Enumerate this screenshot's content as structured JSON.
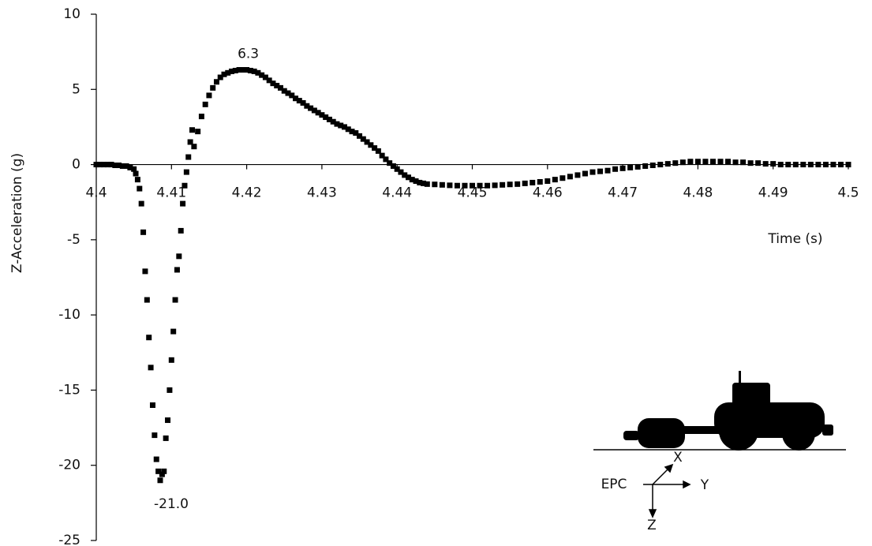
{
  "chart_data": {
    "type": "scatter",
    "marker": "square",
    "color": "#000000",
    "y_label": "Z-Acceleration (g)",
    "x_label": "Time (s)",
    "xlim": [
      4.4,
      4.5
    ],
    "xticks": [
      4.4,
      4.41,
      4.42,
      4.43,
      4.44,
      4.45,
      4.46,
      4.47,
      4.48,
      4.49,
      4.5
    ],
    "ylim": [
      -25,
      10
    ],
    "yticks": [
      10,
      5,
      0,
      -5,
      -10,
      -15,
      -20,
      -25
    ],
    "x": [
      4.4,
      4.4005,
      4.401,
      4.4015,
      4.402,
      4.4025,
      4.403,
      4.4035,
      4.404,
      4.4045,
      4.405,
      4.40525,
      4.4055,
      4.40575,
      4.406,
      4.40625,
      4.4065,
      4.40675,
      4.407,
      4.40725,
      4.4075,
      4.40775,
      4.408,
      4.40825,
      4.4085,
      4.40875,
      4.409,
      4.40925,
      4.4095,
      4.40975,
      4.41,
      4.41025,
      4.4105,
      4.41075,
      4.411,
      4.41125,
      4.4115,
      4.41175,
      4.412,
      4.41225,
      4.4125,
      4.41275,
      4.413,
      4.4135,
      4.414,
      4.4145,
      4.415,
      4.4155,
      4.416,
      4.4165,
      4.417,
      4.4175,
      4.418,
      4.4185,
      4.419,
      4.4195,
      4.42,
      4.4205,
      4.421,
      4.4215,
      4.422,
      4.4225,
      4.423,
      4.4235,
      4.424,
      4.4245,
      4.425,
      4.4255,
      4.426,
      4.4265,
      4.427,
      4.4275,
      4.428,
      4.4285,
      4.429,
      4.4295,
      4.43,
      4.4305,
      4.431,
      4.4315,
      4.432,
      4.4325,
      4.433,
      4.4335,
      4.434,
      4.4345,
      4.435,
      4.4355,
      4.436,
      4.4365,
      4.437,
      4.4375,
      4.438,
      4.4385,
      4.439,
      4.4395,
      4.44,
      4.4405,
      4.441,
      4.4415,
      4.442,
      4.4425,
      4.443,
      4.4435,
      4.444,
      4.445,
      4.446,
      4.447,
      4.448,
      4.449,
      4.45,
      4.451,
      4.452,
      4.453,
      4.454,
      4.455,
      4.456,
      4.457,
      4.458,
      4.459,
      4.46,
      4.461,
      4.462,
      4.463,
      4.464,
      4.465,
      4.466,
      4.467,
      4.468,
      4.469,
      4.47,
      4.471,
      4.472,
      4.473,
      4.474,
      4.475,
      4.476,
      4.477,
      4.478,
      4.479,
      4.48,
      4.481,
      4.482,
      4.483,
      4.484,
      4.485,
      4.486,
      4.487,
      4.488,
      4.489,
      4.49,
      4.491,
      4.492,
      4.493,
      4.494,
      4.495,
      4.496,
      4.497,
      4.498,
      4.499,
      4.5
    ],
    "values": [
      0,
      0,
      0,
      0,
      0,
      -0.05,
      -0.05,
      -0.1,
      -0.1,
      -0.2,
      -0.3,
      -0.6,
      -1.0,
      -1.6,
      -2.6,
      -4.5,
      -7.1,
      -9.0,
      -11.5,
      -13.5,
      -16.0,
      -18.0,
      -19.6,
      -20.4,
      -21.0,
      -20.6,
      -20.4,
      -18.2,
      -17.0,
      -15.0,
      -13.0,
      -11.1,
      -9.0,
      -7.0,
      -6.1,
      -4.4,
      -2.6,
      -1.4,
      -0.5,
      0.5,
      1.5,
      2.3,
      1.2,
      2.2,
      3.2,
      4.0,
      4.6,
      5.1,
      5.5,
      5.8,
      6.0,
      6.1,
      6.2,
      6.25,
      6.3,
      6.3,
      6.3,
      6.25,
      6.2,
      6.1,
      5.95,
      5.8,
      5.6,
      5.4,
      5.25,
      5.1,
      4.9,
      4.75,
      4.6,
      4.4,
      4.25,
      4.1,
      3.9,
      3.75,
      3.6,
      3.45,
      3.3,
      3.15,
      3.0,
      2.85,
      2.7,
      2.6,
      2.5,
      2.35,
      2.2,
      2.1,
      1.9,
      1.7,
      1.5,
      1.3,
      1.1,
      0.9,
      0.6,
      0.35,
      0.1,
      -0.1,
      -0.3,
      -0.5,
      -0.7,
      -0.85,
      -1.0,
      -1.1,
      -1.2,
      -1.25,
      -1.3,
      -1.32,
      -1.35,
      -1.38,
      -1.4,
      -1.4,
      -1.4,
      -1.4,
      -1.4,
      -1.38,
      -1.35,
      -1.32,
      -1.3,
      -1.25,
      -1.2,
      -1.15,
      -1.1,
      -1.0,
      -0.9,
      -0.8,
      -0.7,
      -0.6,
      -0.5,
      -0.45,
      -0.4,
      -0.3,
      -0.25,
      -0.2,
      -0.15,
      -0.1,
      -0.05,
      0,
      0.05,
      0.1,
      0.15,
      0.2,
      0.2,
      0.2,
      0.2,
      0.2,
      0.2,
      0.15,
      0.15,
      0.1,
      0.1,
      0.05,
      0.05,
      0,
      0,
      0,
      0,
      0,
      0,
      0,
      0,
      0,
      0
    ],
    "annotations": [
      {
        "text": "6.3",
        "x": 4.42,
        "y": 6.3
      },
      {
        "text": "-21.0",
        "x": 4.4085,
        "y": -21.0
      }
    ],
    "inset_labels": {
      "origin": "EPC",
      "x": "X",
      "y": "Y",
      "z": "Z"
    }
  }
}
